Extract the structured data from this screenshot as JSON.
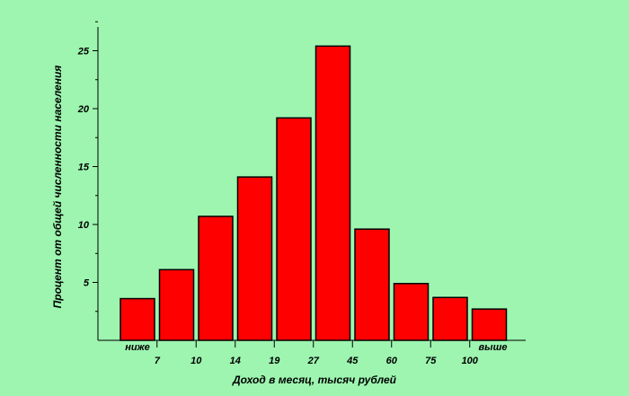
{
  "chart_data": {
    "type": "bar",
    "title": "",
    "xlabel": "Доход в месяц, тысяч рублей",
    "ylabel": "Процент от общей численности населения",
    "bar_color": "#ff0000",
    "bar_border_color": "#000000",
    "background_color": "#9df5b0",
    "grid": false,
    "ylim": [
      0,
      27.5
    ],
    "y_ticks": [
      5,
      10,
      15,
      20,
      25
    ],
    "x_boundaries": [
      "7",
      "10",
      "14",
      "19",
      "27",
      "45",
      "60",
      "75",
      "100"
    ],
    "x_end_labels": {
      "left": "ниже",
      "right": "выше"
    },
    "categories": [
      "ниже 7",
      "7–10",
      "10–14",
      "14–19",
      "19–27",
      "27–45",
      "45–60",
      "60–75",
      "75–100",
      "выше 100"
    ],
    "values": [
      3.6,
      6.1,
      10.7,
      14.1,
      19.2,
      25.4,
      9.6,
      4.9,
      3.7,
      2.7
    ]
  }
}
